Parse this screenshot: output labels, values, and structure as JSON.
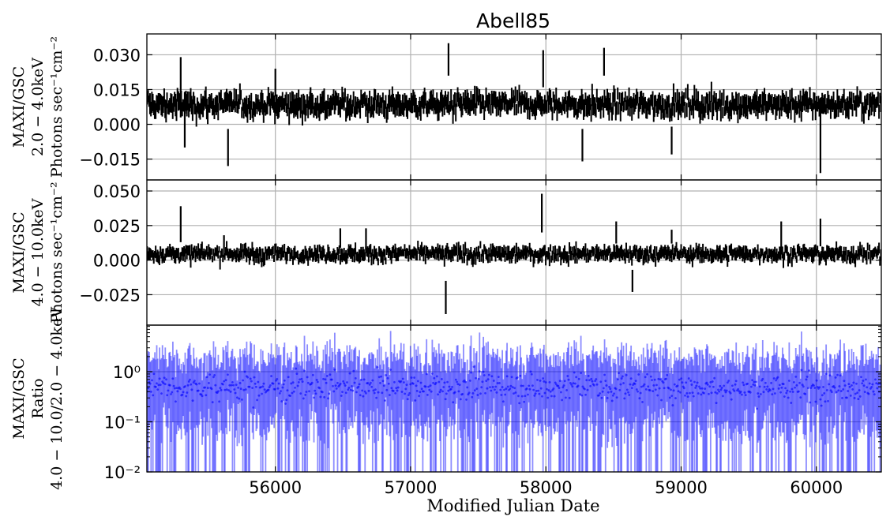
{
  "chart_data": [
    {
      "id": "soft",
      "type": "scatter",
      "title": "Abell85",
      "ylabel_lines": [
        "MAXI/GSC",
        "2.0 − 4.0keV",
        "Photons sec⁻¹cm⁻²"
      ],
      "xlim": [
        55050,
        60480
      ],
      "ylim": [
        -0.024,
        0.039
      ],
      "yscale": "linear",
      "yticks": [
        -0.015,
        0.0,
        0.015,
        0.03
      ],
      "ytick_labels": [
        "−0.015",
        "0.000",
        "0.015",
        "0.030"
      ],
      "xticks": [
        56000,
        57000,
        58000,
        59000,
        60000
      ],
      "grid": true,
      "color": "#000000",
      "series_note": "weekly-binned rate with error bars; ~mean 0.008",
      "highlights": [
        {
          "x": 55300,
          "y": 0.016,
          "err": 0.013
        },
        {
          "x": 55330,
          "y": 0.002,
          "err": 0.012
        },
        {
          "x": 55650,
          "y": -0.01,
          "err": 0.008
        },
        {
          "x": 56000,
          "y": 0.018,
          "err": 0.006
        },
        {
          "x": 56260,
          "y": 0.01,
          "err": 0.006
        },
        {
          "x": 57280,
          "y": 0.028,
          "err": 0.007
        },
        {
          "x": 57980,
          "y": 0.024,
          "err": 0.008
        },
        {
          "x": 58270,
          "y": -0.009,
          "err": 0.007
        },
        {
          "x": 58430,
          "y": 0.027,
          "err": 0.006
        },
        {
          "x": 58930,
          "y": -0.007,
          "err": 0.006
        },
        {
          "x": 60030,
          "y": -0.006,
          "err": 0.015
        }
      ]
    },
    {
      "id": "hard",
      "type": "scatter",
      "title": "",
      "ylabel_lines": [
        "MAXI/GSC",
        "4.0 − 10.0keV",
        "Photons sec⁻¹cm⁻²"
      ],
      "xlim": [
        55050,
        60480
      ],
      "ylim": [
        -0.047,
        0.058
      ],
      "yscale": "linear",
      "yticks": [
        -0.025,
        0.0,
        0.025,
        0.05
      ],
      "ytick_labels": [
        "−0.025",
        "0.000",
        "0.025",
        "0.050"
      ],
      "xticks": [
        56000,
        57000,
        58000,
        59000,
        60000
      ],
      "grid": true,
      "color": "#000000",
      "series_note": "weekly-binned rate with error bars; ~mean 0.004",
      "highlights": [
        {
          "x": 55300,
          "y": 0.026,
          "err": 0.013
        },
        {
          "x": 55620,
          "y": 0.01,
          "err": 0.008
        },
        {
          "x": 56480,
          "y": 0.016,
          "err": 0.007
        },
        {
          "x": 56670,
          "y": 0.015,
          "err": 0.008
        },
        {
          "x": 57260,
          "y": -0.027,
          "err": 0.012
        },
        {
          "x": 57970,
          "y": 0.034,
          "err": 0.014
        },
        {
          "x": 58520,
          "y": 0.02,
          "err": 0.008
        },
        {
          "x": 58640,
          "y": -0.015,
          "err": 0.008
        },
        {
          "x": 58930,
          "y": 0.017,
          "err": 0.005
        },
        {
          "x": 59740,
          "y": 0.018,
          "err": 0.01
        },
        {
          "x": 60030,
          "y": 0.02,
          "err": 0.01
        }
      ]
    },
    {
      "id": "ratio",
      "type": "scatter",
      "title": "",
      "ylabel_lines": [
        "MAXI/GSC",
        "Ratio",
        "4.0 − 10.0/2.0 − 4.0keV"
      ],
      "xlabel": "Modified Julian Date",
      "xlim": [
        55050,
        60480
      ],
      "ylim": [
        0.01,
        8.5
      ],
      "yscale": "log",
      "yticks": [
        0.01,
        0.1,
        1.0
      ],
      "ytick_labels": [
        "10⁻²",
        "10⁻¹",
        "10⁰"
      ],
      "xticks": [
        56000,
        57000,
        58000,
        59000,
        60000
      ],
      "xtick_labels": [
        "56000",
        "57000",
        "58000",
        "59000",
        "60000"
      ],
      "grid": true,
      "color": "#0000ff",
      "series_note": "hardness ratio per bin with error bars; typical value ~0.5"
    }
  ]
}
